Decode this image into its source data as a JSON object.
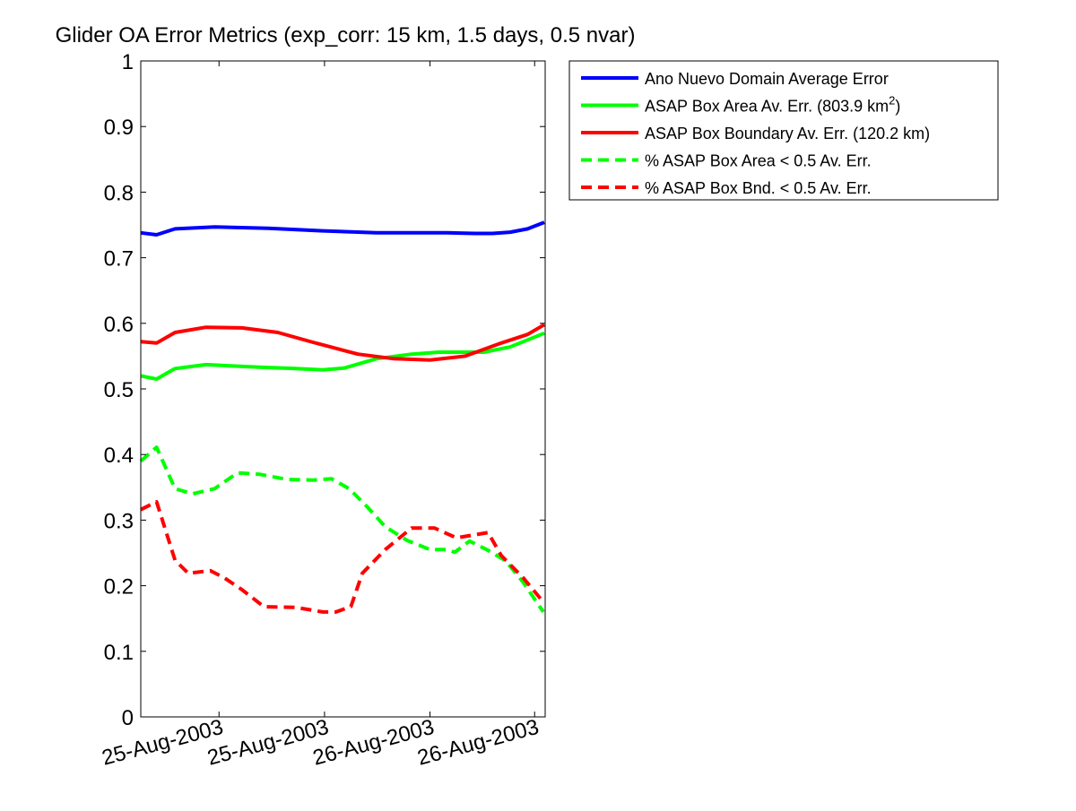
{
  "chart_data": {
    "type": "line",
    "title": "Glider OA Error Metrics (exp_corr: 15 km, 1.5 days, 0.5 nvar)",
    "xlabel": "",
    "ylabel": "",
    "x_units": "hours from plot start (approx.)",
    "xlim": [
      0,
      46
    ],
    "ylim": [
      0,
      1
    ],
    "grid": false,
    "legend_placement": "outside-right-top",
    "yticks": [
      0,
      0.1,
      0.2,
      0.3,
      0.4,
      0.5,
      0.6,
      0.7,
      0.8,
      0.9,
      1
    ],
    "ytick_labels": [
      "0",
      "0.1",
      "0.2",
      "0.3",
      "0.4",
      "0.5",
      "0.6",
      "0.7",
      "0.8",
      "0.9",
      "1"
    ],
    "xticks": [
      8.9,
      20.9,
      32.9,
      44.8
    ],
    "xtick_labels": [
      "25-Aug-2003",
      "25-Aug-2003",
      "26-Aug-2003",
      "26-Aug-2003"
    ],
    "series": [
      {
        "name": "Ano Nuevo Domain Average Error",
        "color": "#0000ff",
        "dash": false,
        "x": [
          0,
          1.8,
          3.9,
          8.4,
          14.5,
          20.7,
          26.8,
          34.9,
          38,
          40,
          42,
          44,
          45.9
        ],
        "y": [
          0.738,
          0.735,
          0.744,
          0.747,
          0.745,
          0.741,
          0.738,
          0.738,
          0.737,
          0.737,
          0.739,
          0.744,
          0.754
        ]
      },
      {
        "name": "ASAP Box Area Av. Err. (803.9 km",
        "name_sup": "2",
        "name_end": ")",
        "color": "#00ff00",
        "dash": false,
        "x": [
          0,
          1.8,
          3.9,
          7.4,
          13.5,
          17.6,
          20.7,
          23.2,
          26.8,
          30.8,
          33.9,
          39,
          42,
          45.9
        ],
        "y": [
          0.52,
          0.515,
          0.531,
          0.537,
          0.533,
          0.531,
          0.529,
          0.532,
          0.546,
          0.553,
          0.556,
          0.556,
          0.564,
          0.585
        ]
      },
      {
        "name": "ASAP Box Boundary Av. Err. (120.2 km)",
        "color": "#ff0000",
        "dash": false,
        "x": [
          0,
          1.8,
          3.9,
          7.4,
          11.5,
          15.6,
          19.6,
          24.7,
          28.8,
          32.9,
          36.9,
          41,
          44,
          45.9
        ],
        "y": [
          0.572,
          0.57,
          0.586,
          0.594,
          0.593,
          0.586,
          0.571,
          0.553,
          0.546,
          0.544,
          0.55,
          0.57,
          0.583,
          0.598
        ]
      },
      {
        "name": "% ASAP Box Area < 0.5 Av. Err.",
        "color": "#00ff00",
        "dash": true,
        "x": [
          0,
          1.8,
          3.9,
          5.9,
          8.4,
          11,
          13.5,
          16.6,
          19.6,
          21.7,
          23.7,
          25.7,
          27.8,
          30.3,
          32.9,
          34.9,
          35.7,
          37.4,
          39.5,
          41.5,
          43.5,
          45.8
        ],
        "y": [
          0.39,
          0.411,
          0.348,
          0.34,
          0.348,
          0.372,
          0.37,
          0.362,
          0.361,
          0.363,
          0.348,
          0.321,
          0.29,
          0.269,
          0.255,
          0.255,
          0.251,
          0.268,
          0.254,
          0.238,
          0.205,
          0.16
        ]
      },
      {
        "name": "% ASAP Box Bnd. < 0.5 Av. Err.",
        "color": "#ff0000",
        "dash": true,
        "x": [
          0,
          1.8,
          3.9,
          5.4,
          7.9,
          9.5,
          11.5,
          14,
          17.6,
          20.7,
          22.2,
          23.9,
          25.2,
          27.8,
          30.8,
          33.4,
          35.9,
          39.5,
          41,
          43.5,
          45.8
        ],
        "y": [
          0.316,
          0.328,
          0.239,
          0.219,
          0.223,
          0.212,
          0.194,
          0.168,
          0.167,
          0.16,
          0.16,
          0.168,
          0.219,
          0.255,
          0.288,
          0.288,
          0.273,
          0.281,
          0.246,
          0.212,
          0.175
        ]
      }
    ]
  }
}
